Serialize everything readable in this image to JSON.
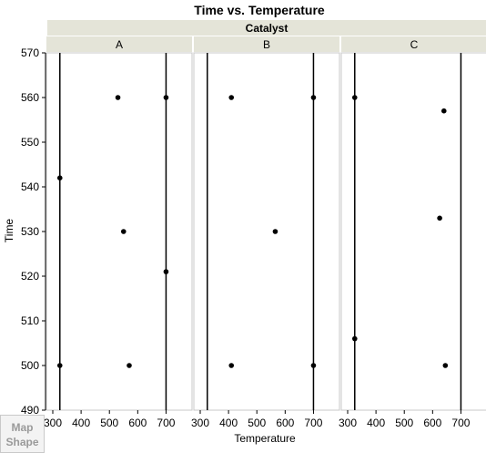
{
  "chart_data": {
    "type": "scatter",
    "title": "Time vs. Temperature",
    "group_header": "Catalyst",
    "xlabel": "Temperature",
    "ylabel": "Time",
    "xlim": [
      300,
      750
    ],
    "ylim": [
      490,
      570
    ],
    "x_ticks": [
      300,
      400,
      500,
      600,
      700
    ],
    "y_ticks": [
      490,
      500,
      510,
      520,
      530,
      540,
      550,
      560,
      570
    ],
    "reference_lines_x": [
      325,
      700
    ],
    "panels": [
      {
        "name": "A",
        "points": [
          {
            "x": 325,
            "y": 542
          },
          {
            "x": 325,
            "y": 500
          },
          {
            "x": 530,
            "y": 560
          },
          {
            "x": 550,
            "y": 530
          },
          {
            "x": 570,
            "y": 500
          },
          {
            "x": 700,
            "y": 560
          },
          {
            "x": 700,
            "y": 521
          }
        ]
      },
      {
        "name": "B",
        "points": [
          {
            "x": 410,
            "y": 560
          },
          {
            "x": 410,
            "y": 500
          },
          {
            "x": 565,
            "y": 530
          },
          {
            "x": 700,
            "y": 560
          },
          {
            "x": 700,
            "y": 500
          }
        ]
      },
      {
        "name": "C",
        "points": [
          {
            "x": 325,
            "y": 560
          },
          {
            "x": 325,
            "y": 506
          },
          {
            "x": 625,
            "y": 533
          },
          {
            "x": 640,
            "y": 557
          },
          {
            "x": 645,
            "y": 500
          }
        ]
      }
    ]
  },
  "map_shape": {
    "line1": "Map",
    "line2": "Shape"
  },
  "colors": {
    "header_bg": "#e4e4d8",
    "frame": "#c8c8c8",
    "point": "#000000",
    "ref_line": "#000000"
  }
}
